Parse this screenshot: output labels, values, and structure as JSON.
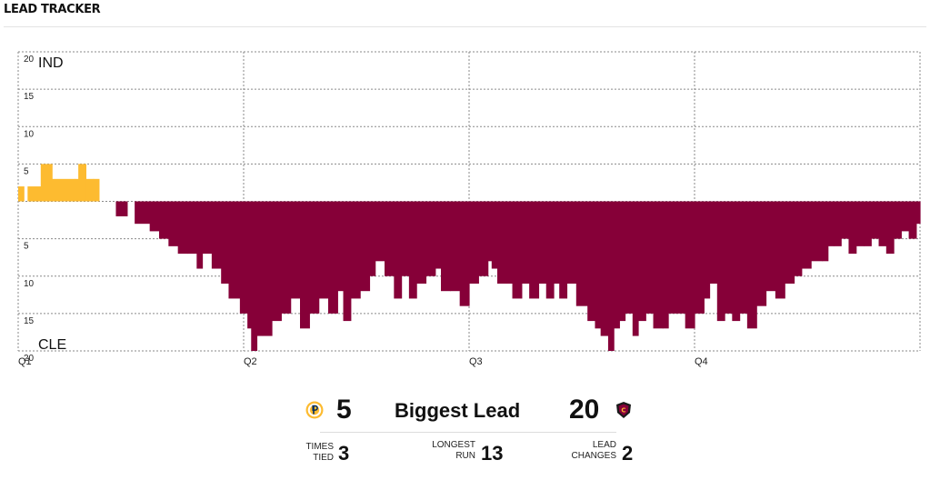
{
  "header": {
    "title": "LEAD TRACKER"
  },
  "chart_data": {
    "type": "bar",
    "title": "",
    "series": [
      {
        "name": "IND",
        "color": "#FDBB30"
      },
      {
        "name": "CLE",
        "color": "#860038"
      }
    ],
    "top_label": "IND",
    "bottom_label": "CLE",
    "ylim": [
      -20,
      20
    ],
    "y_ticks": [
      {
        "value": 20,
        "label": "20"
      },
      {
        "value": 15,
        "label": "15"
      },
      {
        "value": 10,
        "label": "10"
      },
      {
        "value": 5,
        "label": "5"
      },
      {
        "value": -5,
        "label": "5"
      },
      {
        "value": -10,
        "label": "10"
      },
      {
        "value": -15,
        "label": "15"
      },
      {
        "value": -20,
        "label": "20"
      }
    ],
    "quarters": [
      "Q1",
      "Q2",
      "Q3",
      "Q4"
    ],
    "xlim": [
      0,
      48
    ],
    "x_unit": "game minutes",
    "margin_points": [
      [
        0,
        2
      ],
      [
        0.3,
        0
      ],
      [
        0.5,
        2
      ],
      [
        1.2,
        5
      ],
      [
        1.8,
        3
      ],
      [
        3.0,
        3
      ],
      [
        3.2,
        5
      ],
      [
        3.6,
        3
      ],
      [
        4.0,
        3
      ],
      [
        4.3,
        0
      ],
      [
        5.2,
        -2
      ],
      [
        5.8,
        0
      ],
      [
        6.2,
        -3
      ],
      [
        7.0,
        -4
      ],
      [
        7.5,
        -5
      ],
      [
        8.0,
        -6
      ],
      [
        8.5,
        -7
      ],
      [
        9.0,
        -7
      ],
      [
        9.5,
        -9
      ],
      [
        9.8,
        -7
      ],
      [
        10.3,
        -9
      ],
      [
        10.8,
        -11
      ],
      [
        11.2,
        -13
      ],
      [
        11.8,
        -15
      ],
      [
        12.2,
        -17
      ],
      [
        12.4,
        -20
      ],
      [
        12.7,
        -18
      ],
      [
        13.0,
        -18
      ],
      [
        13.5,
        -16
      ],
      [
        14.0,
        -15
      ],
      [
        14.5,
        -13
      ],
      [
        15.0,
        -17
      ],
      [
        15.5,
        -15
      ],
      [
        16.0,
        -13
      ],
      [
        16.5,
        -15
      ],
      [
        17.0,
        -12
      ],
      [
        17.3,
        -16
      ],
      [
        17.7,
        -13
      ],
      [
        18.2,
        -12
      ],
      [
        18.7,
        -10
      ],
      [
        19.0,
        -8
      ],
      [
        19.5,
        -10
      ],
      [
        20.0,
        -13
      ],
      [
        20.4,
        -10
      ],
      [
        20.8,
        -13
      ],
      [
        21.2,
        -11
      ],
      [
        21.7,
        -10
      ],
      [
        22.2,
        -9
      ],
      [
        22.5,
        -12
      ],
      [
        23.0,
        -12
      ],
      [
        23.5,
        -14
      ],
      [
        24.0,
        -11
      ],
      [
        24.5,
        -10
      ],
      [
        25.0,
        -8
      ],
      [
        25.2,
        -9
      ],
      [
        25.5,
        -11
      ],
      [
        26.0,
        -11
      ],
      [
        26.3,
        -13
      ],
      [
        26.8,
        -11
      ],
      [
        27.2,
        -13
      ],
      [
        27.7,
        -11
      ],
      [
        28.1,
        -13
      ],
      [
        28.5,
        -11
      ],
      [
        28.8,
        -13
      ],
      [
        29.2,
        -11
      ],
      [
        29.7,
        -14
      ],
      [
        30.3,
        -16
      ],
      [
        30.7,
        -17
      ],
      [
        31.0,
        -18
      ],
      [
        31.4,
        -20
      ],
      [
        31.7,
        -17
      ],
      [
        32.0,
        -16
      ],
      [
        32.3,
        -15
      ],
      [
        32.7,
        -18
      ],
      [
        33.0,
        -16
      ],
      [
        33.4,
        -15
      ],
      [
        33.8,
        -17
      ],
      [
        34.3,
        -17
      ],
      [
        34.6,
        -15
      ],
      [
        35.0,
        -15
      ],
      [
        35.5,
        -17
      ],
      [
        36.0,
        -15
      ],
      [
        36.5,
        -13
      ],
      [
        36.8,
        -11
      ],
      [
        37.2,
        -16
      ],
      [
        37.6,
        -15
      ],
      [
        38.0,
        -16
      ],
      [
        38.4,
        -15
      ],
      [
        38.8,
        -17
      ],
      [
        39.3,
        -14
      ],
      [
        39.8,
        -12
      ],
      [
        40.3,
        -13
      ],
      [
        40.8,
        -11
      ],
      [
        41.3,
        -10
      ],
      [
        41.7,
        -9
      ],
      [
        42.2,
        -8
      ],
      [
        42.8,
        -8
      ],
      [
        43.1,
        -6
      ],
      [
        43.4,
        -6
      ],
      [
        43.8,
        -5
      ],
      [
        44.2,
        -7
      ],
      [
        44.6,
        -6
      ],
      [
        45.0,
        -6
      ],
      [
        45.4,
        -5
      ],
      [
        45.8,
        -6
      ],
      [
        46.2,
        -7
      ],
      [
        46.6,
        -5
      ],
      [
        47.0,
        -4
      ],
      [
        47.4,
        -5
      ],
      [
        47.8,
        -3
      ],
      [
        48.0,
        -1
      ]
    ]
  },
  "summary": {
    "left_value": "5",
    "center_label": "Biggest Lead",
    "right_value": "20",
    "stats": [
      {
        "label_line1": "TIMES",
        "label_line2": "TIED",
        "value": "3"
      },
      {
        "label_line1": "LONGEST",
        "label_line2": "RUN",
        "value": "13"
      },
      {
        "label_line1": "LEAD",
        "label_line2": "CHANGES",
        "value": "2"
      }
    ],
    "left_logo": "pacers-logo-icon",
    "right_logo": "cavaliers-logo-icon"
  }
}
